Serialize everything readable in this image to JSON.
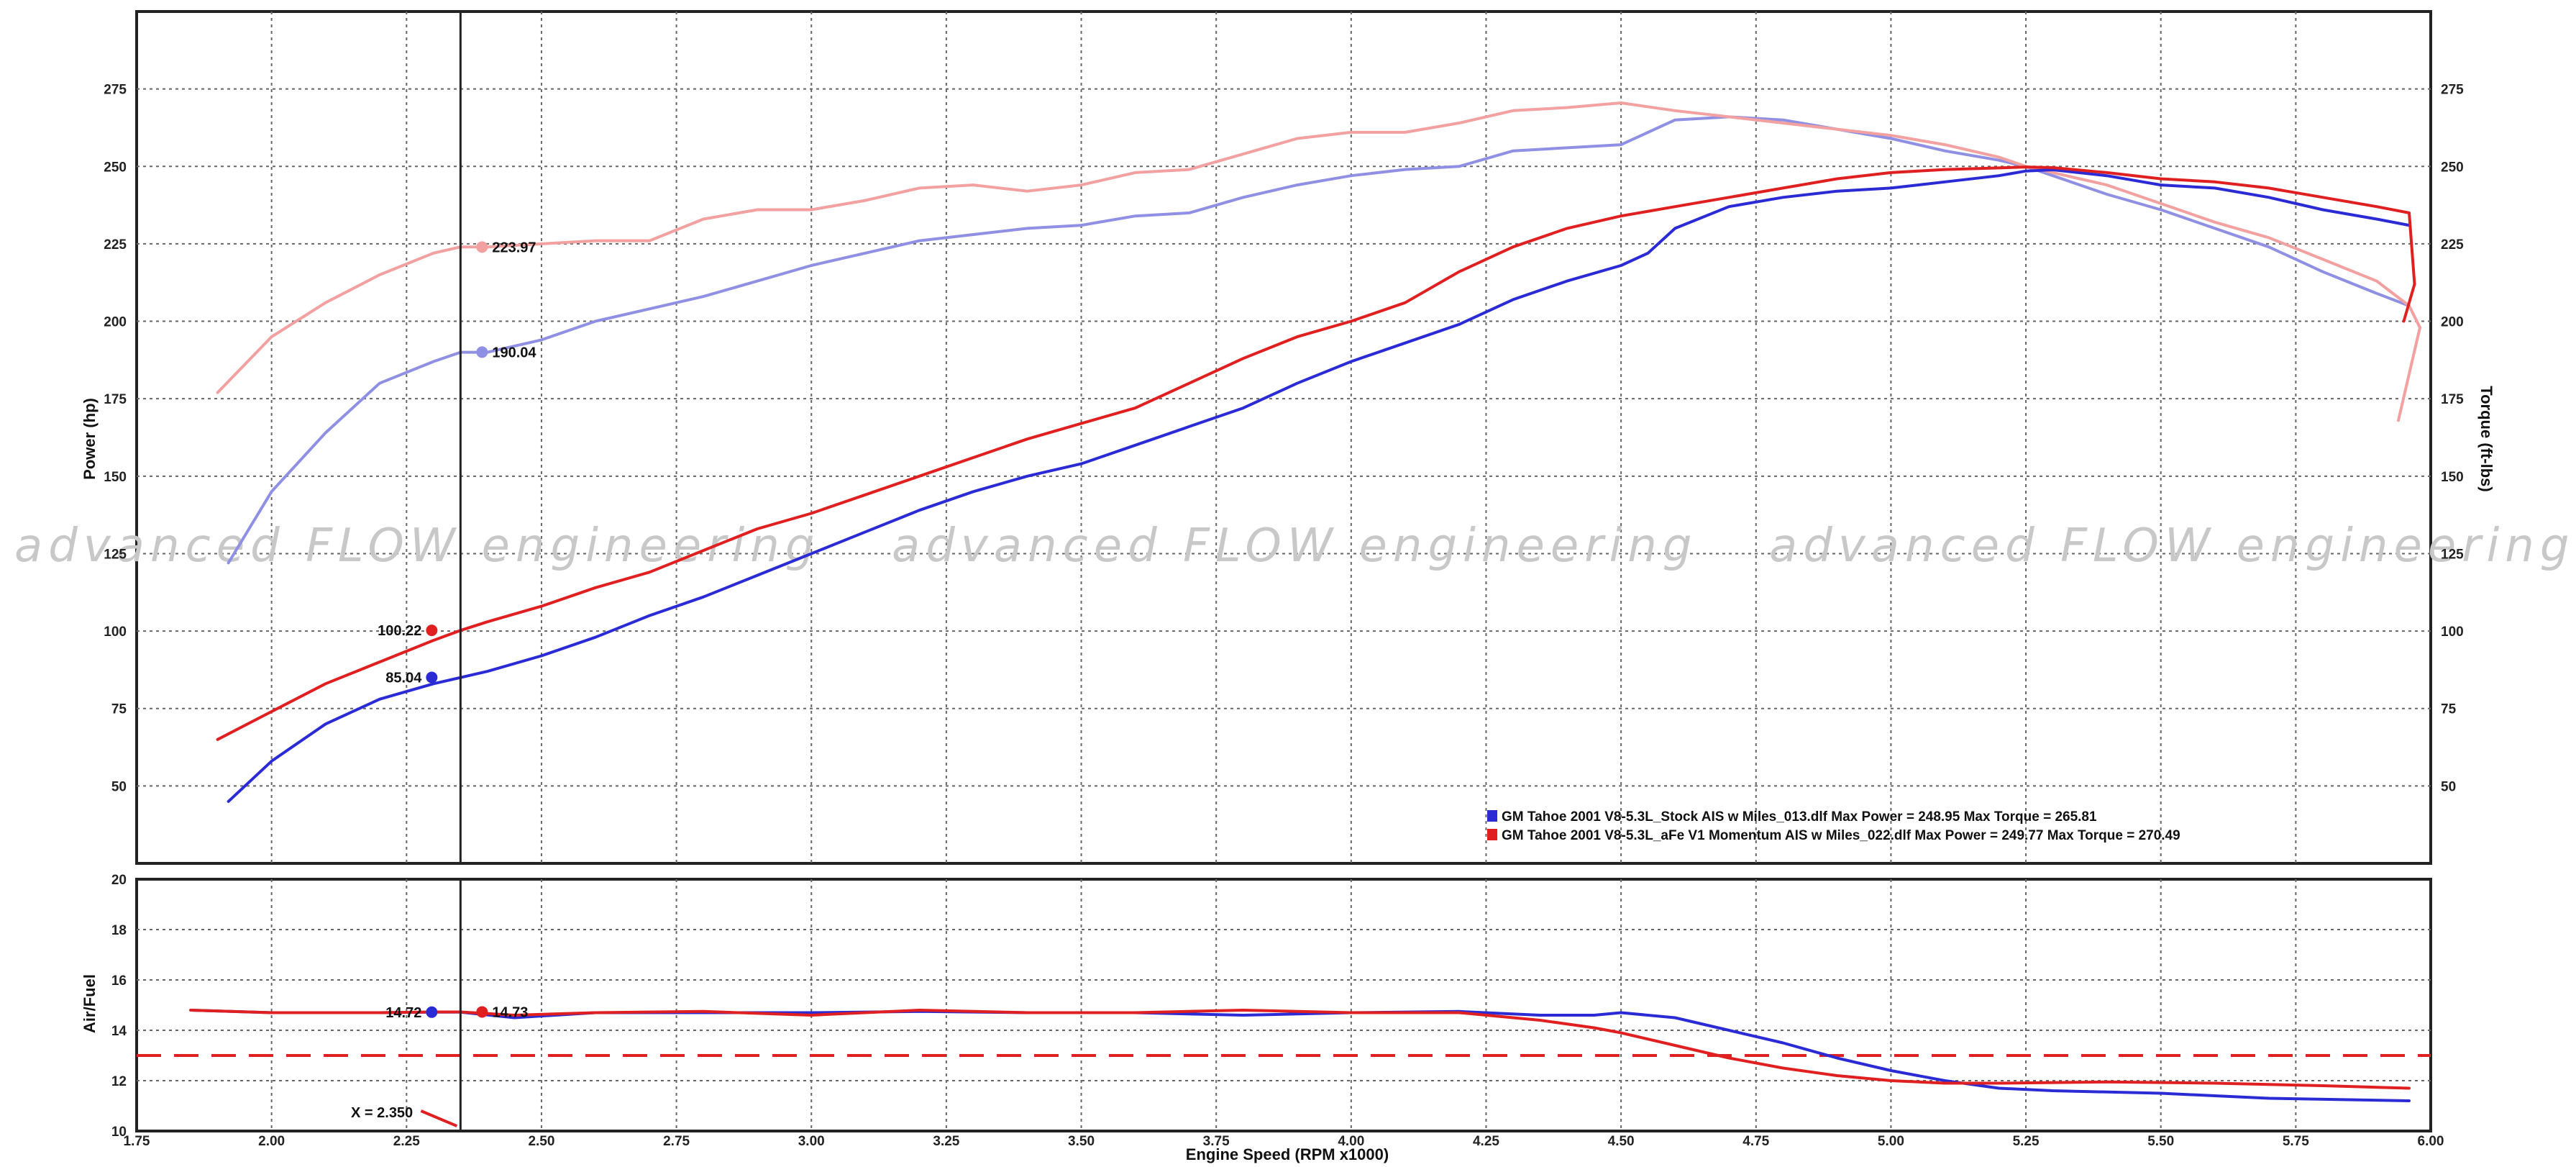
{
  "chart_data": [
    {
      "type": "line",
      "xlabel": "Engine Speed (RPM x1000)",
      "ylabel": "Power (hp)",
      "y2label": "Torque (ft-lbs)",
      "xlim": [
        1.75,
        6.0
      ],
      "ylim": [
        25,
        300
      ],
      "x_ticks": [
        "1.75",
        "2.00",
        "2.25",
        "2.50",
        "2.75",
        "3.00",
        "3.25",
        "3.50",
        "3.75",
        "4.00",
        "4.25",
        "4.50",
        "4.75",
        "5.00",
        "5.25",
        "5.50",
        "5.75",
        "6.00"
      ],
      "y_ticks": [
        "50",
        "75",
        "100",
        "125",
        "150",
        "175",
        "200",
        "225",
        "250",
        "275"
      ],
      "y2_ticks": [
        "50",
        "75",
        "100",
        "125",
        "150",
        "175",
        "200",
        "225",
        "250",
        "275"
      ],
      "grid": true,
      "watermark": [
        "advanced FLOW engineering",
        "advanced FLOW engineering",
        "advanced FLOW engineering"
      ],
      "cursor_x": 2.35,
      "legend_position": "bottom-right",
      "legend": [
        {
          "color": "#2b2bd6",
          "text": "GM Tahoe 2001 V8-5.3L_Stock AIS w Miles_013.dlf Max Power = 248.95     Max Torque = 265.81"
        },
        {
          "color": "#e02020",
          "text": "GM Tahoe 2001 V8-5.3L_aFe V1 Momentum AIS w Miles_022.dlf Max Power = 249.77     Max Torque = 270.49"
        }
      ],
      "series": [
        {
          "id": "stock-power",
          "color": "#2b2bd6",
          "width": 4,
          "x": [
            1.92,
            2.0,
            2.1,
            2.2,
            2.3,
            2.35,
            2.4,
            2.5,
            2.6,
            2.7,
            2.8,
            2.9,
            3.0,
            3.1,
            3.2,
            3.3,
            3.4,
            3.5,
            3.6,
            3.7,
            3.8,
            3.9,
            4.0,
            4.1,
            4.2,
            4.3,
            4.4,
            4.5,
            4.55,
            4.6,
            4.7,
            4.8,
            4.9,
            5.0,
            5.1,
            5.2,
            5.25,
            5.3,
            5.4,
            5.5,
            5.6,
            5.7,
            5.8,
            5.9,
            5.96
          ],
          "y": [
            45,
            58,
            70,
            78,
            83,
            85,
            87,
            92,
            98,
            105,
            111,
            118,
            125,
            132,
            139,
            145,
            150,
            154,
            160,
            166,
            172,
            180,
            187,
            193,
            199,
            207,
            213,
            218,
            222,
            230,
            237,
            240,
            242,
            243,
            245,
            247,
            248.5,
            248.9,
            247,
            244,
            243,
            240,
            236,
            233,
            231
          ]
        },
        {
          "id": "afe-power",
          "color": "#e02020",
          "width": 4,
          "x": [
            1.9,
            2.0,
            2.1,
            2.2,
            2.3,
            2.35,
            2.4,
            2.5,
            2.6,
            2.7,
            2.8,
            2.9,
            3.0,
            3.1,
            3.2,
            3.3,
            3.4,
            3.5,
            3.6,
            3.7,
            3.8,
            3.9,
            4.0,
            4.1,
            4.2,
            4.3,
            4.4,
            4.5,
            4.6,
            4.7,
            4.8,
            4.9,
            5.0,
            5.1,
            5.2,
            5.25,
            5.3,
            5.4,
            5.5,
            5.6,
            5.7,
            5.8,
            5.9,
            5.96,
            5.97,
            5.95
          ],
          "y": [
            65,
            74,
            83,
            90,
            97,
            100.2,
            103,
            108,
            114,
            119,
            126,
            133,
            138,
            144,
            150,
            156,
            162,
            167,
            172,
            180,
            188,
            195,
            200,
            206,
            216,
            224,
            230,
            234,
            237,
            240,
            243,
            246,
            248,
            249,
            249.5,
            249.8,
            249.6,
            248,
            246,
            245,
            243,
            240,
            237,
            235,
            212,
            200
          ]
        },
        {
          "id": "stock-torque",
          "color": "#8f90e4",
          "width": 4,
          "x": [
            1.92,
            2.0,
            2.1,
            2.2,
            2.3,
            2.35,
            2.4,
            2.5,
            2.6,
            2.7,
            2.8,
            2.9,
            3.0,
            3.1,
            3.2,
            3.3,
            3.4,
            3.5,
            3.6,
            3.7,
            3.8,
            3.9,
            4.0,
            4.1,
            4.2,
            4.3,
            4.4,
            4.5,
            4.6,
            4.7,
            4.8,
            4.9,
            5.0,
            5.1,
            5.2,
            5.25,
            5.3,
            5.4,
            5.5,
            5.6,
            5.7,
            5.8,
            5.9,
            5.96
          ],
          "y": [
            122,
            145,
            164,
            180,
            187,
            190,
            190,
            194,
            200,
            204,
            208,
            213,
            218,
            222,
            226,
            228,
            230,
            231,
            234,
            235,
            240,
            244,
            247,
            249,
            250,
            255,
            256,
            257,
            265,
            266,
            265,
            262,
            259,
            255,
            252,
            250,
            247,
            241,
            236,
            230,
            224,
            216,
            209,
            205
          ]
        },
        {
          "id": "afe-torque",
          "color": "#f2a0a0",
          "width": 4,
          "x": [
            1.9,
            2.0,
            2.1,
            2.2,
            2.3,
            2.35,
            2.4,
            2.5,
            2.6,
            2.7,
            2.8,
            2.9,
            3.0,
            3.1,
            3.2,
            3.3,
            3.4,
            3.5,
            3.6,
            3.7,
            3.8,
            3.9,
            4.0,
            4.1,
            4.2,
            4.3,
            4.4,
            4.5,
            4.6,
            4.7,
            4.8,
            4.9,
            5.0,
            5.1,
            5.2,
            5.25,
            5.3,
            5.4,
            5.5,
            5.6,
            5.7,
            5.8,
            5.9,
            5.96,
            5.98,
            5.94
          ],
          "y": [
            177,
            195,
            206,
            215,
            222,
            224,
            224,
            225,
            226,
            226,
            233,
            236,
            236,
            239,
            243,
            244,
            242,
            244,
            248,
            249,
            254,
            259,
            261,
            261,
            264,
            268,
            269,
            270.5,
            268,
            266,
            264,
            262,
            260,
            257,
            253,
            250,
            248,
            244,
            238,
            232,
            227,
            220,
            213,
            205,
            198,
            168
          ]
        }
      ]
    },
    {
      "type": "line",
      "xlabel": "Engine Speed (RPM x1000)",
      "ylabel": "Air/Fuel",
      "xlim": [
        1.75,
        6.0
      ],
      "ylim": [
        10,
        20
      ],
      "y_ticks": [
        "10",
        "12",
        "14",
        "16",
        "18",
        "20"
      ],
      "grid": true,
      "reference_line": {
        "y": 13,
        "color": "#e02020",
        "style": "dashed"
      },
      "series": [
        {
          "id": "stock-afr",
          "color": "#2b2bd6",
          "width": 4,
          "x": [
            1.85,
            2.0,
            2.2,
            2.3,
            2.35,
            2.45,
            2.6,
            2.8,
            3.0,
            3.2,
            3.4,
            3.6,
            3.8,
            4.0,
            4.2,
            4.35,
            4.45,
            4.5,
            4.6,
            4.7,
            4.8,
            4.9,
            5.0,
            5.1,
            5.2,
            5.3,
            5.5,
            5.7,
            5.96
          ],
          "y": [
            14.8,
            14.7,
            14.7,
            14.72,
            14.72,
            14.5,
            14.7,
            14.7,
            14.7,
            14.75,
            14.7,
            14.7,
            14.6,
            14.7,
            14.75,
            14.6,
            14.6,
            14.7,
            14.5,
            14.0,
            13.5,
            12.9,
            12.4,
            12.0,
            11.7,
            11.6,
            11.5,
            11.3,
            11.2
          ]
        },
        {
          "id": "afe-afr",
          "color": "#e02020",
          "width": 4,
          "x": [
            1.85,
            2.0,
            2.2,
            2.3,
            2.35,
            2.45,
            2.6,
            2.8,
            3.0,
            3.2,
            3.4,
            3.6,
            3.8,
            4.0,
            4.2,
            4.35,
            4.45,
            4.5,
            4.6,
            4.7,
            4.8,
            4.9,
            5.0,
            5.1,
            5.2,
            5.4,
            5.6,
            5.8,
            5.96
          ],
          "y": [
            14.8,
            14.7,
            14.7,
            14.73,
            14.73,
            14.6,
            14.7,
            14.75,
            14.6,
            14.8,
            14.7,
            14.7,
            14.8,
            14.7,
            14.7,
            14.4,
            14.1,
            13.9,
            13.4,
            12.9,
            12.5,
            12.2,
            12.0,
            11.9,
            11.9,
            11.95,
            11.9,
            11.8,
            11.7
          ]
        }
      ]
    }
  ],
  "markers": {
    "afe_torque": {
      "x": 2.35,
      "y": 223.97,
      "label": "223.97"
    },
    "stock_torque": {
      "x": 2.35,
      "y": 190.04,
      "label": "190.04"
    },
    "afe_power": {
      "x": 2.35,
      "y": 100.22,
      "label": "100.22"
    },
    "stock_power": {
      "x": 2.35,
      "y": 85.04,
      "label": "85.04"
    },
    "stock_afr": {
      "x": 2.35,
      "y": 14.72,
      "label": "14.72"
    },
    "afe_afr": {
      "x": 2.35,
      "y": 14.73,
      "label": "14.73"
    },
    "cursor_readout": "X = 2.350"
  },
  "colors": {
    "stock": "#2b2bd6",
    "afe": "#e02020",
    "stock_torque": "#8f90e4",
    "afe_torque": "#f2a0a0"
  }
}
